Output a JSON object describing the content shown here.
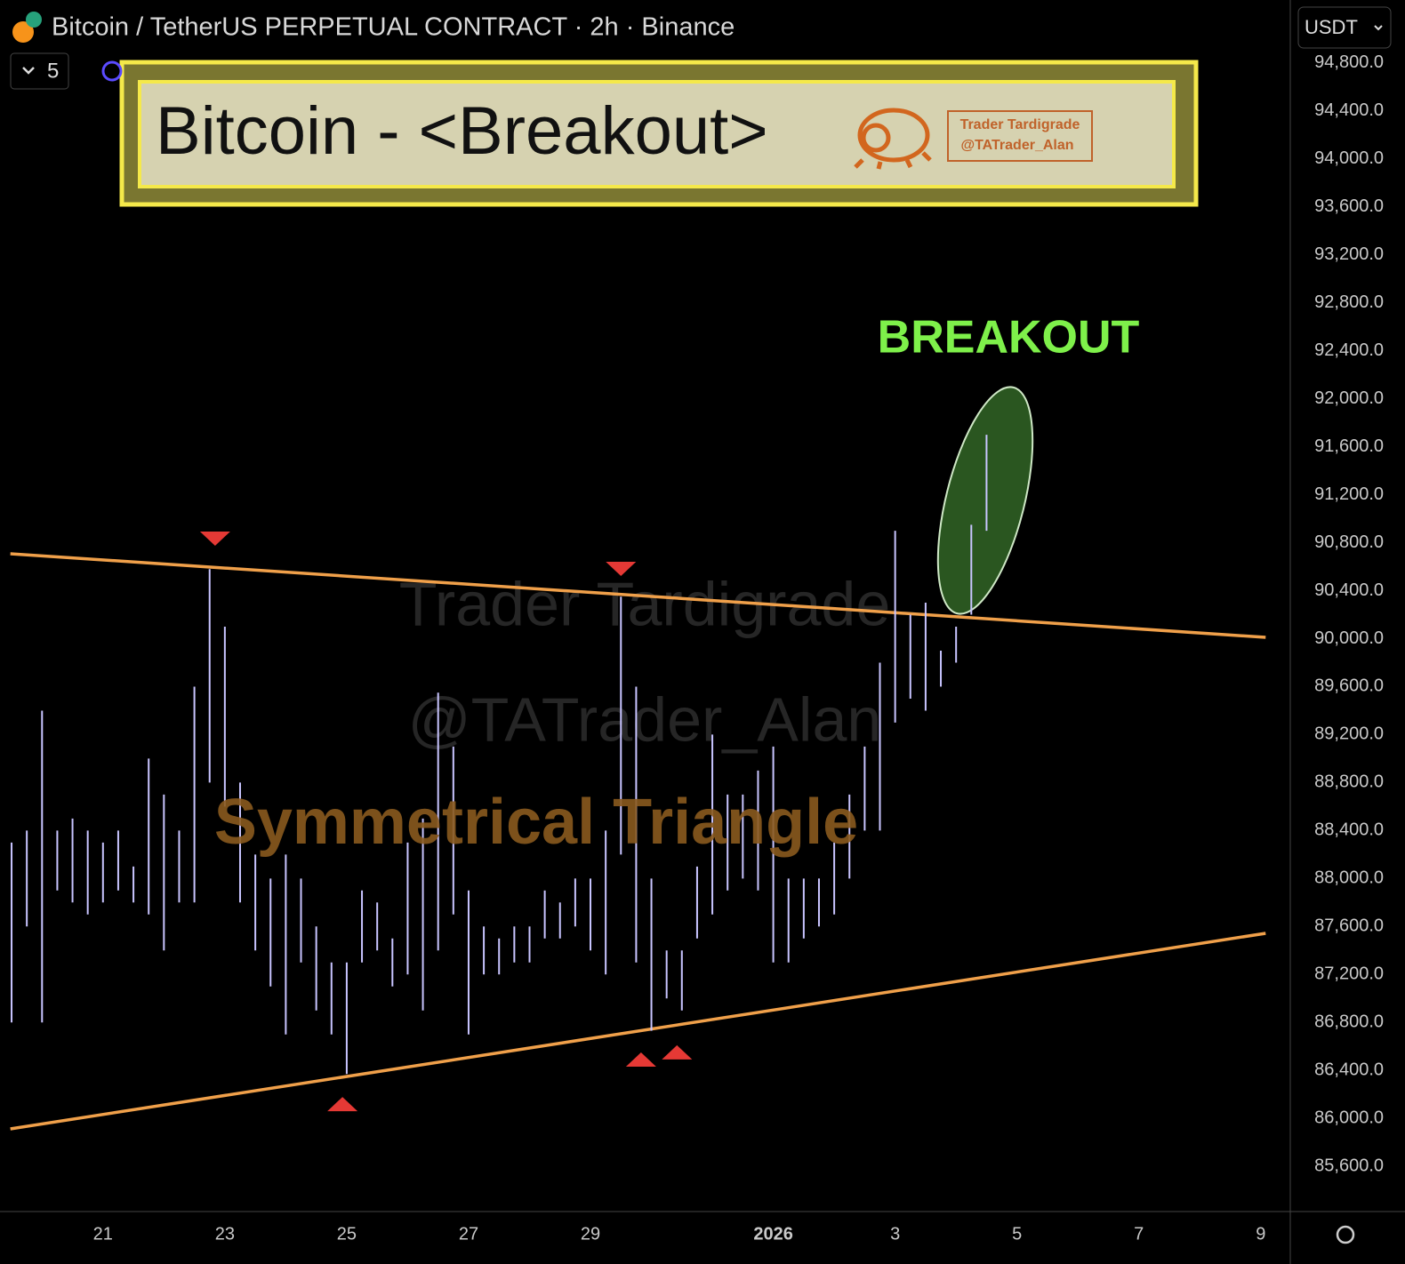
{
  "toolbar": {
    "symbol": "Bitcoin / TetherUS PERPETUAL CONTRACT · 2h · Binance",
    "currency": "USDT",
    "indicator_count": 5
  },
  "chart_data": {
    "type": "ohlc",
    "color": "#c8c4ff",
    "annotations": {
      "banner_title": "Bitcoin - <Breakout>",
      "banner_author": "Trader Tardigrade",
      "banner_handle": "@TATrader_Alan",
      "breakout_label": "BREAKOUT",
      "watermark_name": "Trader Tardigrade",
      "watermark_handle": "@TATrader_Alan",
      "pattern_label": "Symmetrical Triangle"
    },
    "x": [
      19.5,
      19.75,
      20,
      20.25,
      20.5,
      20.75,
      21,
      21.25,
      21.5,
      21.75,
      22,
      22.25,
      22.5,
      22.75,
      23,
      23.25,
      23.5,
      23.75,
      24,
      24.25,
      24.5,
      24.75,
      25,
      25.25,
      25.5,
      25.75,
      26,
      26.25,
      26.5,
      26.75,
      27,
      27.25,
      27.5,
      27.75,
      28,
      28.25,
      28.5,
      28.75,
      29,
      29.25,
      29.5,
      29.75,
      30,
      30.25,
      30.5,
      30.75,
      31,
      31.25,
      31.5,
      31.75,
      32,
      32.25,
      32.5,
      32.75,
      33,
      33.25,
      33.5,
      33.75,
      34,
      34.25,
      34.5,
      34.75,
      35,
      35.25,
      35.5
    ],
    "high": [
      88300,
      88400,
      89400,
      88400,
      88500,
      88400,
      88300,
      88400,
      88100,
      89000,
      88700,
      88400,
      89600,
      90580,
      90100,
      88800,
      88200,
      88000,
      88200,
      88000,
      87600,
      87300,
      87300,
      87900,
      87800,
      87500,
      88300,
      88500,
      89550,
      89100,
      87900,
      87600,
      87500,
      87600,
      87600,
      87900,
      87800,
      88000,
      88000,
      88400,
      90350,
      89600,
      88000,
      87400,
      87400,
      88100,
      89200,
      88700,
      88700,
      88900,
      89100,
      88000,
      88000,
      88000,
      88300,
      88700,
      89100,
      89800,
      90900,
      90200,
      90300,
      89900,
      90100,
      90950,
      91700
    ],
    "low": [
      86800,
      87600,
      86800,
      87900,
      87800,
      87700,
      87800,
      87900,
      87800,
      87700,
      87400,
      87800,
      87800,
      88800,
      88600,
      87800,
      87400,
      87100,
      86700,
      87300,
      86900,
      86700,
      86370,
      87300,
      87400,
      87100,
      87200,
      86900,
      87400,
      87700,
      86700,
      87200,
      87200,
      87300,
      87300,
      87500,
      87500,
      87600,
      87400,
      87200,
      88200,
      87300,
      86730,
      87000,
      86900,
      87500,
      87700,
      87900,
      88000,
      87900,
      87300,
      87300,
      87500,
      87600,
      87700,
      88000,
      88400,
      88400,
      89300,
      89500,
      89400,
      89600,
      89800,
      90200,
      90900
    ],
    "trendlines": [
      {
        "x": [
          19.48,
          40.08
        ],
        "y": [
          90708,
          90011
        ],
        "color": "#f0a04a"
      },
      {
        "x": [
          19.48,
          40.08
        ],
        "y": [
          85912,
          87543
        ],
        "color": "#f0a04a"
      }
    ],
    "markers": [
      {
        "x": 22.84,
        "y": 90834,
        "direction": "down"
      },
      {
        "x": 29.5,
        "y": 90582,
        "direction": "down"
      },
      {
        "x": 24.93,
        "y": 86119,
        "direction": "up"
      },
      {
        "x": 29.83,
        "y": 86490,
        "direction": "up"
      },
      {
        "x": 30.42,
        "y": 86550,
        "direction": "up"
      }
    ],
    "marker_color": "#e53935",
    "xlim": [
      19.31,
      40.47
    ],
    "xticks": [
      21,
      23,
      25,
      27,
      29,
      {
        "value": 32,
        "label": "2026"
      },
      {
        "value": 34,
        "label": "3"
      },
      {
        "value": 36,
        "label": "5"
      },
      {
        "value": 38,
        "label": "7"
      },
      {
        "value": 40,
        "label": "9"
      }
    ],
    "ylim": [
      85230,
      95326
    ],
    "yticks": [
      {
        "value": 85600,
        "label": "85,600.0"
      },
      {
        "value": 86000,
        "label": "86,000.0"
      },
      {
        "value": 86400,
        "label": "86,400.0"
      },
      {
        "value": 86800,
        "label": "86,800.0"
      },
      {
        "value": 87200,
        "label": "87,200.0"
      },
      {
        "value": 87600,
        "label": "87,600.0"
      },
      {
        "value": 88000,
        "label": "88,000.0"
      },
      {
        "value": 88400,
        "label": "88,400.0"
      },
      {
        "value": 88800,
        "label": "88,800.0"
      },
      {
        "value": 89200,
        "label": "89,200.0"
      },
      {
        "value": 89600,
        "label": "89,600.0"
      },
      {
        "value": 90000,
        "label": "90,000.0"
      },
      {
        "value": 90400,
        "label": "90,400.0"
      },
      {
        "value": 90800,
        "label": "90,800.0"
      },
      {
        "value": 91200,
        "label": "91,200.0"
      },
      {
        "value": 91600,
        "label": "91,600.0"
      },
      {
        "value": 92000,
        "label": "92,000.0"
      },
      {
        "value": 92400,
        "label": "92,400.0"
      },
      {
        "value": 92800,
        "label": "92,800.0"
      },
      {
        "value": 93200,
        "label": "93,200.0"
      },
      {
        "value": 93600,
        "label": "93,600.0"
      },
      {
        "value": 94000,
        "label": "94,000.0"
      },
      {
        "value": 94400,
        "label": "94,400.0"
      },
      {
        "value": 94800,
        "label": "94,800.0"
      }
    ],
    "grid": false
  }
}
